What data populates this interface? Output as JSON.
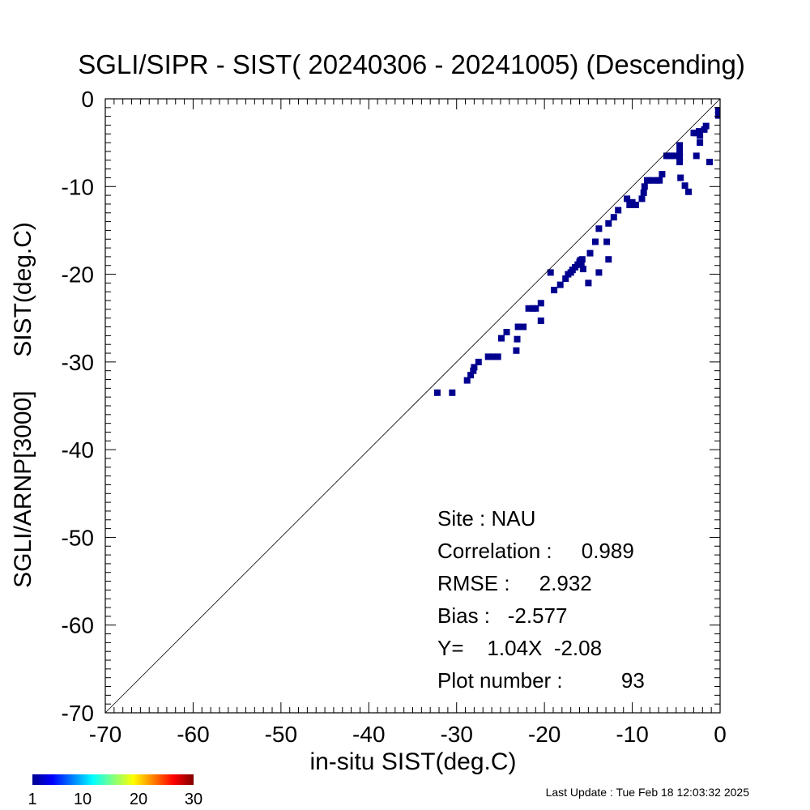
{
  "chart_data": {
    "type": "scatter",
    "title": "SGLI/SIPR - SIST( 20240306 - 20241005) (Descending)",
    "xlabel": "in-situ SIST(deg.C)",
    "ylabel": "SGLI/ARNP[3000]     SIST(deg.C)",
    "xlim": [
      -70,
      0
    ],
    "ylim": [
      -70,
      0
    ],
    "x_ticks": [
      -70,
      -60,
      -50,
      -40,
      -30,
      -20,
      -10,
      0
    ],
    "y_ticks": [
      0,
      -10,
      -20,
      -30,
      -40,
      -50,
      -60,
      -70
    ],
    "grid": false,
    "reference_line": "y = x",
    "point_color": "#00008F",
    "points": [
      [
        -32.2,
        -33.5
      ],
      [
        -30.5,
        -33.5
      ],
      [
        -28.8,
        -32.1
      ],
      [
        -28.4,
        -31.5
      ],
      [
        -28.1,
        -31.0
      ],
      [
        -28.0,
        -30.6
      ],
      [
        -27.5,
        -30.0
      ],
      [
        -26.4,
        -29.4
      ],
      [
        -25.8,
        -29.4
      ],
      [
        -25.3,
        -29.4
      ],
      [
        -24.9,
        -27.3
      ],
      [
        -24.3,
        -26.6
      ],
      [
        -23.2,
        -28.7
      ],
      [
        -23.1,
        -27.4
      ],
      [
        -23.0,
        -26.0
      ],
      [
        -22.4,
        -26.0
      ],
      [
        -21.3,
        -23.9
      ],
      [
        -21.8,
        -23.9
      ],
      [
        -21.0,
        -23.9
      ],
      [
        -20.4,
        -23.3
      ],
      [
        -20.4,
        -25.3
      ],
      [
        -19.3,
        -19.8
      ],
      [
        -18.9,
        -21.8
      ],
      [
        -18.2,
        -21.2
      ],
      [
        -17.6,
        -20.5
      ],
      [
        -17.3,
        -20.0
      ],
      [
        -17.0,
        -19.8
      ],
      [
        -16.8,
        -19.5
      ],
      [
        -16.5,
        -19.2
      ],
      [
        -16.2,
        -18.9
      ],
      [
        -16.0,
        -18.6
      ],
      [
        -15.8,
        -18.9
      ],
      [
        -15.6,
        -19.4
      ],
      [
        -15.9,
        -18.4
      ],
      [
        -15.7,
        -18.3
      ],
      [
        -15.0,
        -21.0
      ],
      [
        -14.8,
        -17.6
      ],
      [
        -13.8,
        -19.8
      ],
      [
        -12.7,
        -18.3
      ],
      [
        -14.2,
        -16.3
      ],
      [
        -13.8,
        -14.8
      ],
      [
        -12.9,
        -16.3
      ],
      [
        -12.7,
        -14.2
      ],
      [
        -12.1,
        -13.5
      ],
      [
        -11.6,
        -12.7
      ],
      [
        -10.6,
        -11.4
      ],
      [
        -10.3,
        -12.1
      ],
      [
        -10.0,
        -11.8
      ],
      [
        -9.6,
        -12.1
      ],
      [
        -8.9,
        -11.4
      ],
      [
        -8.7,
        -10.7
      ],
      [
        -8.6,
        -10.0
      ],
      [
        -8.3,
        -9.3
      ],
      [
        -8.0,
        -9.3
      ],
      [
        -7.6,
        -9.3
      ],
      [
        -7.2,
        -9.3
      ],
      [
        -6.9,
        -9.3
      ],
      [
        -6.6,
        -8.6
      ],
      [
        -6.1,
        -6.5
      ],
      [
        -5.8,
        -6.5
      ],
      [
        -5.5,
        -6.5
      ],
      [
        -5.1,
        -6.5
      ],
      [
        -4.6,
        -5.3
      ],
      [
        -4.6,
        -6.0
      ],
      [
        -4.6,
        -6.6
      ],
      [
        -4.6,
        -7.2
      ],
      [
        -4.5,
        -9.0
      ],
      [
        -4.0,
        -9.9
      ],
      [
        -3.6,
        -10.6
      ],
      [
        -3.0,
        -3.9
      ],
      [
        -2.7,
        -3.9
      ],
      [
        -2.4,
        -3.7
      ],
      [
        -2.3,
        -4.2
      ],
      [
        -2.7,
        -6.5
      ],
      [
        -2.3,
        -5.0
      ],
      [
        -1.8,
        -3.5
      ],
      [
        -1.6,
        -3.1
      ],
      [
        -1.2,
        -7.2
      ],
      [
        -0.2,
        -1.3
      ],
      [
        -0.2,
        -1.9
      ]
    ]
  },
  "stats": {
    "site": "Site : NAU",
    "correlation": "Correlation :     0.989",
    "rmse": "RMSE :     2.932",
    "bias": "Bias :   -2.577",
    "regression": "Y=    1.04X  -2.08",
    "plot_number": "Plot number :          93"
  },
  "colorbar": {
    "labels": [
      "1",
      "10",
      "20",
      "30"
    ],
    "colors": [
      "#00008F",
      "#0000FF",
      "#0080FF",
      "#00FFFF",
      "#80FF80",
      "#FFFF00",
      "#FF8000",
      "#FF0000",
      "#800000"
    ]
  },
  "footer": {
    "last_update": "Last Update : Tue Feb 18 12:03:32 2025"
  }
}
